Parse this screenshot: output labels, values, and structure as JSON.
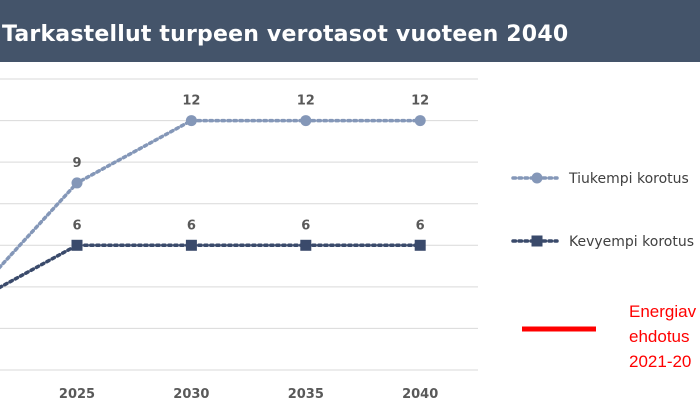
{
  "header": {
    "title": "Tarkastellut turpeen verotasot vuoteen 2040"
  },
  "chart_data": {
    "type": "line",
    "x": [
      2020,
      2025,
      2030,
      2035,
      2040
    ],
    "x_tick_labels": [
      "2025",
      "2030",
      "2035",
      "2040"
    ],
    "ylim": [
      0,
      14
    ],
    "grid": true,
    "legend_position": "right",
    "series": [
      {
        "name": "Tiukempi korotus",
        "values": [
          3,
          9,
          12,
          12,
          12
        ],
        "data_labels": [
          "",
          "9",
          "12",
          "12",
          "12"
        ],
        "color": "#8497b8",
        "marker": "circle",
        "style": "dotted"
      },
      {
        "name": "Kevyempi korotus",
        "values": [
          3,
          6,
          6,
          6,
          6
        ],
        "data_labels": [
          "",
          "6",
          "6",
          "6",
          "6"
        ],
        "color": "#3a4a6b",
        "marker": "square",
        "style": "dotted"
      }
    ],
    "annotation": {
      "lines": [
        "Energiav",
        "ehdotus",
        "2021-20"
      ],
      "color": "#ff0000",
      "segment": {
        "x": [
          2018.5,
          2020.5
        ],
        "y": [
          2.5,
          8.5
        ]
      }
    }
  }
}
